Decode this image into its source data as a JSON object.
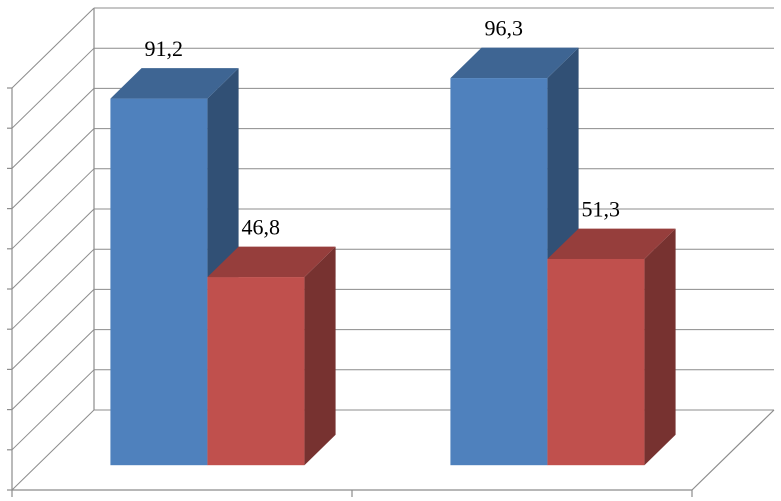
{
  "chart_data": {
    "type": "bar",
    "style": "3d-clustered-column",
    "categories": [
      "",
      ""
    ],
    "series": [
      {
        "color": "#4f81bd",
        "values": [
          91.2,
          96.3
        ],
        "labels": [
          "91,2",
          "96,3"
        ]
      },
      {
        "color": "#c0504d",
        "values": [
          46.8,
          51.3
        ],
        "labels": [
          "46,8",
          "51,3"
        ]
      }
    ],
    "title": "",
    "xlabel": "",
    "ylabel": "",
    "ylim": [
      0,
      100
    ],
    "y_tick_step": 10,
    "grid": true,
    "legend": "none",
    "tick_labels_visible": false
  }
}
